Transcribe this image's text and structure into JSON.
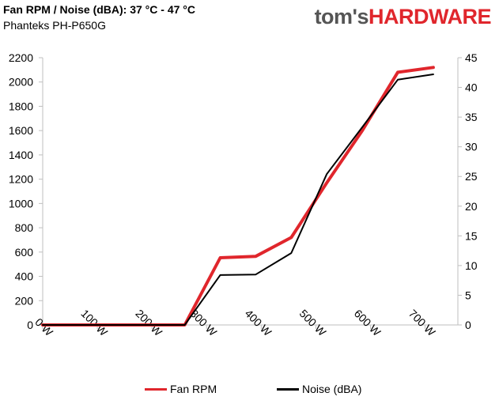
{
  "header": {
    "title": "Fan RPM / Noise (dBA): 37 °C - 47 °C",
    "subtitle": "Phanteks PH-P650G",
    "logo_part1": "tom's",
    "logo_part2": "HARDWARE"
  },
  "chart_data": {
    "type": "line",
    "x": [
      0,
      65,
      130,
      195,
      260,
      325,
      390,
      455,
      520,
      585,
      650,
      715
    ],
    "x_unit": "W",
    "x_ticks": [
      "0 W",
      "100 W",
      "200 W",
      "300 W",
      "400 W",
      "500 W",
      "600 W",
      "700 W"
    ],
    "x_tick_values": [
      0,
      100,
      200,
      300,
      400,
      500,
      600,
      700
    ],
    "xlim": [
      0,
      760
    ],
    "series": [
      {
        "name": "Fan RPM",
        "axis": "left",
        "color": "#e0262c",
        "values": [
          0,
          0,
          0,
          0,
          0,
          553,
          565,
          720,
          1170,
          1600,
          2080,
          2120
        ]
      },
      {
        "name": "Noise (dBA)",
        "axis": "right",
        "color": "#000000",
        "values": [
          0,
          0,
          0,
          0,
          0,
          8.4,
          8.5,
          12.1,
          25.4,
          33.3,
          41.3,
          42.2
        ]
      }
    ],
    "y_left": {
      "lim": [
        0,
        2200
      ],
      "ticks": [
        "0",
        "200",
        "400",
        "600",
        "800",
        "1000",
        "1200",
        "1400",
        "1600",
        "1800",
        "2000",
        "2200"
      ]
    },
    "y_right": {
      "lim": [
        0,
        45
      ],
      "ticks": [
        "0",
        "5",
        "10",
        "15",
        "20",
        "25",
        "30",
        "35",
        "40",
        "45"
      ]
    },
    "grid": false,
    "legend_position": "bottom"
  },
  "legend": [
    {
      "label": "Fan RPM",
      "color": "#e0262c"
    },
    {
      "label": "Noise (dBA)",
      "color": "#000000"
    }
  ]
}
